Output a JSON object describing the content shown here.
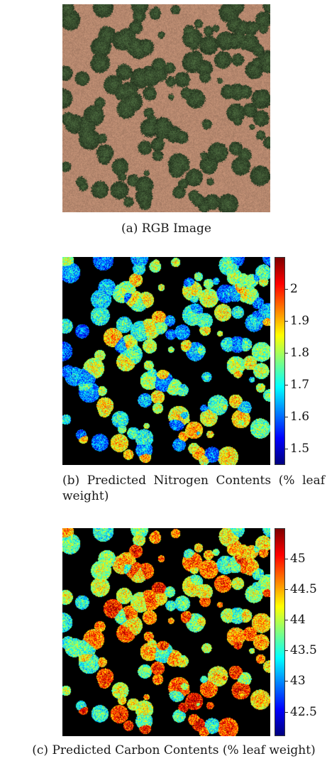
{
  "panels": [
    {
      "id": "a",
      "caption": "(a) RGB Image"
    },
    {
      "id": "b",
      "caption": "(b) Predicted Nitrogen Contents (% leaf weight)",
      "colorbar": {
        "colormap": "jet",
        "range": [
          1.45,
          2.1
        ],
        "ticks": [
          "2",
          "1.9",
          "1.8",
          "1.7",
          "1.6",
          "1.5"
        ],
        "tick_values": [
          2.0,
          1.9,
          1.8,
          1.7,
          1.6,
          1.5
        ]
      }
    },
    {
      "id": "c",
      "caption": "(c) Predicted Carbon Contents (% leaf weight)",
      "colorbar": {
        "colormap": "jet",
        "range": [
          42.1,
          45.5
        ],
        "ticks": [
          "45",
          "44.5",
          "44",
          "43.5",
          "43",
          "42.5"
        ],
        "tick_values": [
          45.0,
          44.5,
          44.0,
          43.5,
          43.0,
          42.5
        ]
      }
    }
  ],
  "colors": {
    "soil": "#b98a6e",
    "tree": "#4d6a3b",
    "background_map": "#000000"
  }
}
